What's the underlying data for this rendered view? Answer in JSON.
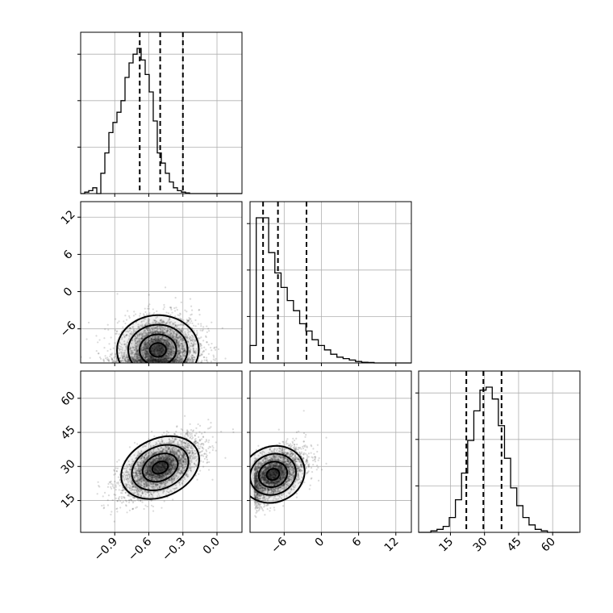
{
  "chart_data": {
    "type": "corner",
    "title": "",
    "parameters": [
      {
        "range": [
          -1.2,
          0.22
        ],
        "ticks": [
          -0.9,
          -0.6,
          -0.3,
          0.0
        ],
        "tick_labels": [
          "−0.9",
          "−0.6",
          "−0.3",
          "0.0"
        ],
        "quantiles": [
          -0.68,
          -0.5,
          -0.3
        ]
      },
      {
        "range": [
          -11.5,
          14.5
        ],
        "ticks": [
          -6,
          0,
          6,
          12
        ],
        "tick_labels": [
          "−6",
          "0",
          "6",
          "12"
        ],
        "quantiles": [
          -9.4,
          -7.0,
          -2.4
        ]
      },
      {
        "range": [
          1,
          72
        ],
        "ticks": [
          15,
          30,
          45,
          60
        ],
        "tick_labels": [
          "15",
          "30",
          "45",
          "60"
        ],
        "quantiles": [
          22,
          29.5,
          37.5
        ]
      }
    ],
    "histograms": [
      {
        "edges_start": -1.2,
        "bin_width": 0.0355,
        "counts": [
          0,
          0.01,
          0.02,
          0.04,
          0,
          0.14,
          0.28,
          0.42,
          0.49,
          0.56,
          0.64,
          0.8,
          0.9,
          0.96,
          1.0,
          0.92,
          0.82,
          0.7,
          0.5,
          0.28,
          0.21,
          0.14,
          0.08,
          0.04,
          0.02,
          0.01,
          0.005,
          0,
          0,
          0,
          0,
          0,
          0,
          0,
          0,
          0,
          0,
          0,
          0,
          0
        ]
      },
      {
        "edges_start": -11.5,
        "bin_width": 1.0,
        "counts": [
          0.12,
          1.0,
          1.0,
          0.76,
          0.62,
          0.52,
          0.43,
          0.36,
          0.27,
          0.22,
          0.16,
          0.12,
          0.09,
          0.06,
          0.04,
          0.03,
          0.02,
          0.01,
          0.005,
          0.003,
          0,
          0,
          0,
          0,
          0,
          0
        ]
      },
      {
        "edges_start": 1.0,
        "bin_width": 2.7,
        "counts": [
          0,
          0,
          0.01,
          0.02,
          0.04,
          0.1,
          0.22,
          0.4,
          0.62,
          0.82,
          0.96,
          0.98,
          0.9,
          0.72,
          0.5,
          0.3,
          0.18,
          0.1,
          0.05,
          0.02,
          0.01,
          0,
          0,
          0,
          0,
          0
        ]
      }
    ],
    "pairs": [
      {
        "x": 0,
        "y": 1,
        "center": [
          -0.52,
          -9.4
        ],
        "spread": [
          0.18,
          2.8
        ],
        "corr": 0.15
      },
      {
        "x": 0,
        "y": 2,
        "center": [
          -0.5,
          29.5
        ],
        "spread": [
          0.18,
          6.8
        ],
        "corr": 0.62
      },
      {
        "x": 1,
        "y": 2,
        "center": [
          -7.8,
          26.5
        ],
        "spread": [
          2.6,
          6.0
        ],
        "corr": 0.5
      }
    ],
    "grid": true,
    "quantile_lines": "dashed"
  }
}
